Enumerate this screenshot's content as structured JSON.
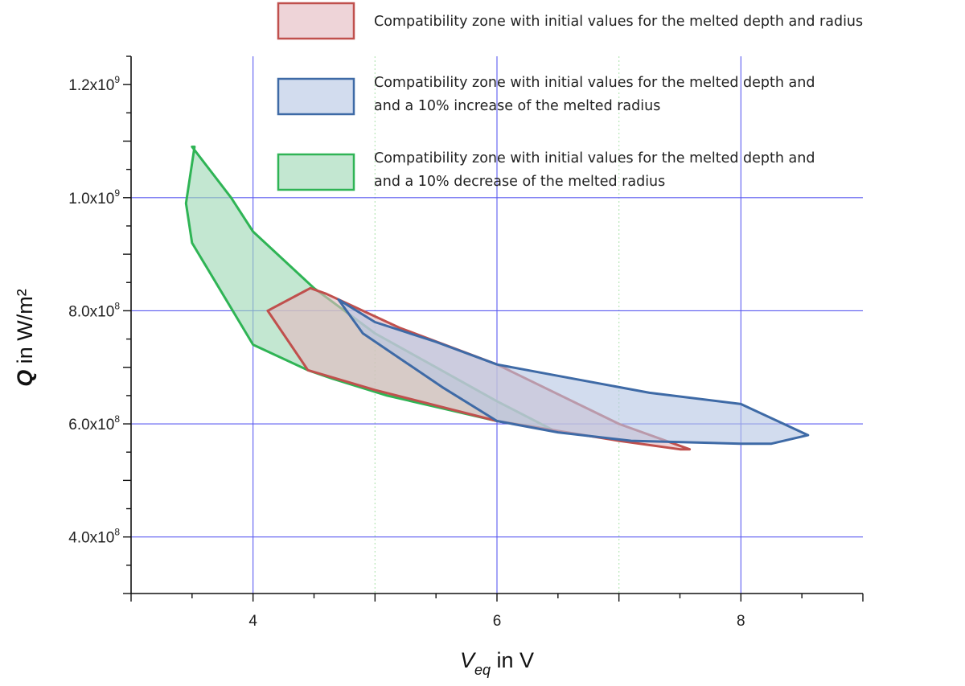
{
  "chart_data": {
    "type": "area",
    "xlabel": {
      "symbol": "V",
      "subscript": "eq",
      "rest": " in V"
    },
    "ylabel": {
      "symbol": "Q",
      "rest": " in W/m²"
    },
    "xlim": [
      3,
      9
    ],
    "ylim": [
      300000000,
      1250000000
    ],
    "x_ticks": [
      {
        "value": 4,
        "label": "4"
      },
      {
        "value": 6,
        "label": "6"
      },
      {
        "value": 8,
        "label": "8"
      }
    ],
    "y_ticks": [
      {
        "value": 400000000,
        "mantissa": "4.0x10",
        "exponent": "8"
      },
      {
        "value": 600000000,
        "mantissa": "6.0x10",
        "exponent": "8"
      },
      {
        "value": 800000000,
        "mantissa": "8.0x10",
        "exponent": "8"
      },
      {
        "value": 1000000000,
        "mantissa": "1.0x10",
        "exponent": "9"
      },
      {
        "value": 1200000000,
        "mantissa": "1.2x10",
        "exponent": "9"
      }
    ],
    "grid": {
      "major_x": [
        4,
        6,
        8
      ],
      "minor_x": [
        5,
        7
      ],
      "major_y": [
        600000000,
        800000000,
        1000000000
      ]
    },
    "legend_position": "top-right",
    "series": [
      {
        "name": "Compatibility zone with initial values for the melted depth and and a 10% decrease of the melted radius",
        "legend_lines": [
          "Compatibility zone with initial values for the melted depth and",
          "and a 10% decrease of the melted radius"
        ],
        "fill": "#9ed9b4",
        "stroke": "#2fb455",
        "x": [
          3.52,
          3.45,
          3.5,
          4.0,
          4.45,
          4.65,
          5.1,
          6.0,
          6.45,
          6.0,
          5.5,
          5.0,
          4.5,
          4.0,
          3.82,
          3.5
        ],
        "y": [
          1090000000,
          990000000,
          920000000,
          740000000,
          695000000,
          680000000,
          650000000,
          605000000,
          590000000,
          640000000,
          700000000,
          760000000,
          840000000,
          940000000,
          1000000000,
          1090000000
        ]
      },
      {
        "name": "Compatibility zone with initial values for the melted depth and radius",
        "legend_lines": [
          "Compatibility zone with initial values for the melted depth and radius"
        ],
        "fill": "#e3b9c0",
        "stroke": "#c0504d",
        "x": [
          4.12,
          4.47,
          4.6,
          5.2,
          6.0,
          7.0,
          7.58,
          7.5,
          7.0,
          6.0,
          5.0,
          4.45
        ],
        "y": [
          800000000,
          840000000,
          830000000,
          770000000,
          705000000,
          600000000,
          555000000,
          555000000,
          570000000,
          605000000,
          660000000,
          695000000
        ]
      },
      {
        "name": "Compatibility zone with initial values for the melted depth and and a 10% increase of the melted radius",
        "legend_lines": [
          "Compatibility zone with initial values for the melted depth and",
          "and a 10% increase of the melted radius"
        ],
        "fill": "#b6c7e3",
        "stroke": "#3e6aa6",
        "x": [
          4.7,
          5.0,
          5.5,
          6.0,
          6.5,
          7.25,
          8.0,
          8.55,
          8.25,
          8.0,
          7.1,
          6.5,
          6.0,
          5.55,
          4.9
        ],
        "y": [
          820000000,
          780000000,
          745000000,
          705000000,
          685000000,
          655000000,
          635000000,
          580000000,
          565000000,
          565000000,
          570000000,
          585000000,
          605000000,
          665000000,
          760000000
        ]
      }
    ]
  }
}
